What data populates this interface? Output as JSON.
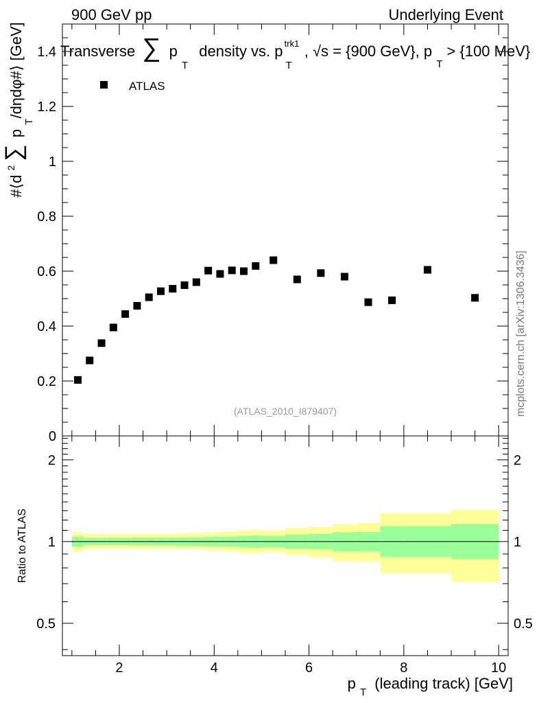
{
  "header": {
    "left": "900 GeV pp",
    "right": "Underlying Event"
  },
  "title": {
    "prefix": "Transverse",
    "sum_symbol": "∑",
    "p": "p",
    "sub_T": "T",
    "middle": "density vs. p",
    "sup_trk1": "trk1",
    "sqrt_s": ", √s = {900 GeV}, p",
    "tail": " > {100 MeV}"
  },
  "legend": {
    "label": "ATLAS"
  },
  "y_label": {
    "part1": "#⟨d",
    "sup2": "2",
    "sum": "∑",
    "p": "p",
    "subT": "T",
    "part2": "/dηdφ#⟩ [GeV]"
  },
  "watermark": "(ATLAS_2010_I879407)",
  "side_credit": "mcplots.cern.ch [arXiv:1306.3436]",
  "ratio_y_label": "Ratio to ATLAS",
  "x_label": {
    "p": "p",
    "subT": "T",
    "rest": "(leading track) [GeV]"
  },
  "colors": {
    "band_outer": "#ffff99",
    "band_inner": "#99ff99",
    "marker": "#000000"
  },
  "chart_data": [
    {
      "type": "scatter",
      "name": "main",
      "series": [
        {
          "name": "ATLAS",
          "x": [
            1.125,
            1.375,
            1.625,
            1.875,
            2.125,
            2.375,
            2.625,
            2.875,
            3.125,
            3.375,
            3.625,
            3.875,
            4.125,
            4.375,
            4.625,
            4.875,
            5.25,
            5.75,
            6.25,
            6.75,
            7.25,
            7.75,
            8.5,
            9.5
          ],
          "values": [
            0.204,
            0.275,
            0.338,
            0.395,
            0.444,
            0.474,
            0.505,
            0.527,
            0.536,
            0.549,
            0.56,
            0.602,
            0.59,
            0.603,
            0.6,
            0.619,
            0.64,
            0.57,
            0.593,
            0.58,
            0.487,
            0.494,
            0.605,
            0.503
          ]
        }
      ],
      "xlim": [
        0.8,
        10.2
      ],
      "ylim": [
        0,
        1.5
      ],
      "yticks": [
        0,
        0.2,
        0.4,
        0.6,
        0.8,
        1,
        1.2,
        1.4
      ],
      "ytick_labels": [
        "0",
        "0.2",
        "0.4",
        "0.6",
        "0.8",
        "1",
        "1.2",
        "1.4"
      ]
    },
    {
      "type": "area",
      "name": "ratio",
      "bins": [
        [
          1.0,
          1.25
        ],
        [
          1.25,
          1.5
        ],
        [
          1.5,
          1.75
        ],
        [
          1.75,
          2.0
        ],
        [
          2.0,
          2.25
        ],
        [
          2.25,
          2.5
        ],
        [
          2.5,
          2.75
        ],
        [
          2.75,
          3.0
        ],
        [
          3.0,
          3.25
        ],
        [
          3.25,
          3.5
        ],
        [
          3.5,
          3.75
        ],
        [
          3.75,
          4.0
        ],
        [
          4.0,
          4.25
        ],
        [
          4.25,
          4.5
        ],
        [
          4.5,
          4.75
        ],
        [
          4.75,
          5.0
        ],
        [
          5.0,
          5.5
        ],
        [
          5.5,
          6.0
        ],
        [
          6.0,
          6.5
        ],
        [
          6.5,
          7.0
        ],
        [
          7.0,
          7.5
        ],
        [
          7.5,
          8.0
        ],
        [
          8.0,
          9.0
        ],
        [
          9.0,
          10.0
        ]
      ],
      "outer_low": [
        0.92,
        0.944,
        0.944,
        0.944,
        0.944,
        0.942,
        0.942,
        0.94,
        0.94,
        0.938,
        0.936,
        0.932,
        0.928,
        0.922,
        0.91,
        0.904,
        0.914,
        0.892,
        0.878,
        0.848,
        0.844,
        0.766,
        0.766,
        0.712
      ],
      "outer_high": [
        1.085,
        1.065,
        1.065,
        1.065,
        1.065,
        1.067,
        1.067,
        1.07,
        1.07,
        1.073,
        1.075,
        1.08,
        1.085,
        1.09,
        1.1,
        1.108,
        1.1,
        1.125,
        1.135,
        1.162,
        1.17,
        1.27,
        1.27,
        1.31
      ],
      "inner_low": [
        0.958,
        0.97,
        0.97,
        0.97,
        0.97,
        0.969,
        0.969,
        0.967,
        0.967,
        0.966,
        0.965,
        0.963,
        0.961,
        0.958,
        0.952,
        0.949,
        0.954,
        0.943,
        0.936,
        0.921,
        0.919,
        0.877,
        0.877,
        0.862
      ],
      "inner_high": [
        1.043,
        1.033,
        1.033,
        1.033,
        1.033,
        1.034,
        1.034,
        1.035,
        1.035,
        1.036,
        1.037,
        1.039,
        1.041,
        1.044,
        1.05,
        1.053,
        1.049,
        1.061,
        1.068,
        1.082,
        1.085,
        1.14,
        1.14,
        1.161
      ],
      "reference": 1,
      "xlim": [
        0.8,
        10.2
      ],
      "ylim": [
        0.38,
        2.45
      ],
      "yscale": "log",
      "yticks": [
        0.5,
        1,
        2
      ],
      "ytick_labels": [
        "0.5",
        "1",
        "2"
      ],
      "xticks": [
        2,
        4,
        6,
        8,
        10
      ],
      "xtick_labels": [
        "2",
        "4",
        "6",
        "8",
        "10"
      ]
    }
  ]
}
